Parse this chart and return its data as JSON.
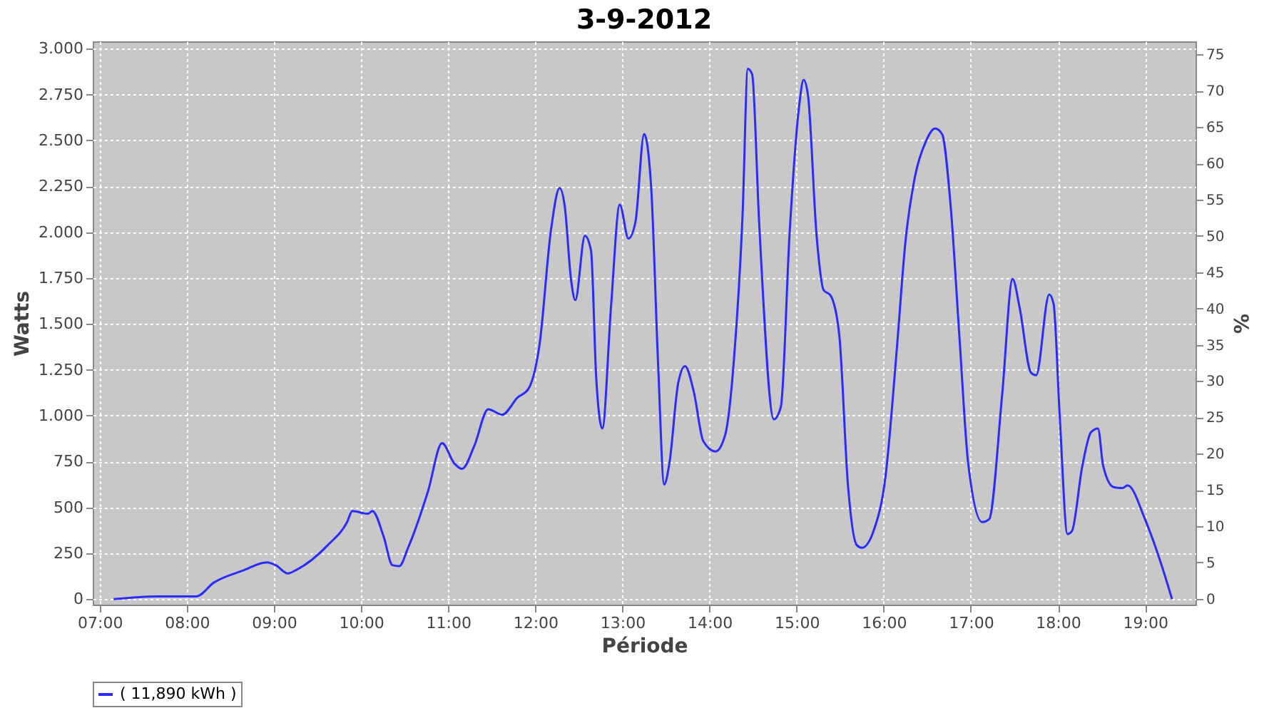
{
  "chart_data": {
    "type": "line",
    "title": "3-9-2012",
    "xlabel": "Période",
    "ylabel": "Watts",
    "y2label": "%",
    "xlim": [
      6.92,
      19.58
    ],
    "xticks": [
      {
        "value": 7,
        "label": "07:00"
      },
      {
        "value": 8,
        "label": "08:00"
      },
      {
        "value": 9,
        "label": "09:00"
      },
      {
        "value": 10,
        "label": "10:00"
      },
      {
        "value": 11,
        "label": "11:00"
      },
      {
        "value": 12,
        "label": "12:00"
      },
      {
        "value": 13,
        "label": "13:00"
      },
      {
        "value": 14,
        "label": "14:00"
      },
      {
        "value": 15,
        "label": "15:00"
      },
      {
        "value": 16,
        "label": "16:00"
      },
      {
        "value": 17,
        "label": "17:00"
      },
      {
        "value": 18,
        "label": "18:00"
      },
      {
        "value": 19,
        "label": "19:00"
      }
    ],
    "ylim": [
      -30,
      3040
    ],
    "yticks": [
      {
        "value": 0,
        "label": "0"
      },
      {
        "value": 250,
        "label": "250"
      },
      {
        "value": 500,
        "label": "500"
      },
      {
        "value": 750,
        "label": "750"
      },
      {
        "value": 1000,
        "label": "1.000"
      },
      {
        "value": 1250,
        "label": "1.250"
      },
      {
        "value": 1500,
        "label": "1.500"
      },
      {
        "value": 1750,
        "label": "1.750"
      },
      {
        "value": 2000,
        "label": "2.000"
      },
      {
        "value": 2250,
        "label": "2.250"
      },
      {
        "value": 2500,
        "label": "2.500"
      },
      {
        "value": 2750,
        "label": "2.750"
      },
      {
        "value": 3000,
        "label": "3.000"
      }
    ],
    "y2lim": [
      -0.8,
      76.8
    ],
    "y2ticks": [
      0,
      5,
      10,
      15,
      20,
      25,
      30,
      35,
      40,
      45,
      50,
      55,
      60,
      65,
      70,
      75
    ],
    "grid": true,
    "legend": "bottom",
    "x": [
      7.16,
      7.66,
      8.11,
      8.31,
      8.64,
      8.92,
      9.02,
      9.16,
      9.26,
      9.62,
      9.84,
      9.9,
      10.08,
      10.13,
      10.26,
      10.36,
      10.44,
      10.54,
      10.77,
      10.93,
      11.07,
      11.16,
      11.3,
      11.46,
      11.62,
      11.8,
      11.92,
      12.05,
      12.18,
      12.28,
      12.34,
      12.41,
      12.46,
      12.57,
      12.64,
      12.7,
      12.77,
      12.87,
      12.97,
      13.07,
      13.15,
      13.25,
      13.33,
      13.41,
      13.48,
      13.54,
      13.64,
      13.72,
      13.82,
      13.93,
      14.07,
      14.18,
      14.28,
      14.38,
      14.44,
      14.49,
      14.57,
      14.74,
      14.82,
      14.92,
      15.03,
      15.08,
      15.13,
      15.23,
      15.31,
      15.39,
      15.49,
      15.59,
      15.69,
      15.75,
      15.89,
      16.02,
      16.15,
      16.25,
      16.36,
      16.48,
      16.59,
      16.67,
      16.77,
      16.87,
      16.97,
      17.13,
      17.21,
      17.36,
      17.48,
      17.56,
      17.69,
      17.75,
      17.9,
      17.95,
      18.02,
      18.11,
      18.16,
      18.28,
      18.38,
      18.46,
      18.52,
      18.64,
      18.74,
      18.8,
      19.0,
      19.2,
      19.31
    ],
    "series": [
      {
        "name": "( 11,890 kWh )",
        "color": "#2b2bff",
        "values": [
          0,
          15,
          15,
          90,
          155,
          200,
          185,
          140,
          160,
          295,
          420,
          480,
          465,
          480,
          340,
          185,
          180,
          280,
          590,
          850,
          740,
          710,
          835,
          1035,
          1005,
          1100,
          1145,
          1390,
          2010,
          2240,
          2135,
          1745,
          1630,
          1980,
          1900,
          1205,
          930,
          1595,
          2150,
          1965,
          2055,
          2535,
          2250,
          1285,
          625,
          740,
          1175,
          1270,
          1130,
          860,
          805,
          895,
          1300,
          2095,
          2890,
          2860,
          2055,
          980,
          1050,
          1995,
          2690,
          2830,
          2750,
          1980,
          1685,
          1655,
          1440,
          620,
          295,
          280,
          380,
          665,
          1360,
          1950,
          2305,
          2490,
          2565,
          2535,
          2135,
          1425,
          740,
          420,
          435,
          1115,
          1745,
          1590,
          1235,
          1220,
          1660,
          1610,
          1005,
          355,
          370,
          725,
          910,
          930,
          725,
          610,
          605,
          620,
          435,
          170,
          0
        ]
      }
    ]
  }
}
